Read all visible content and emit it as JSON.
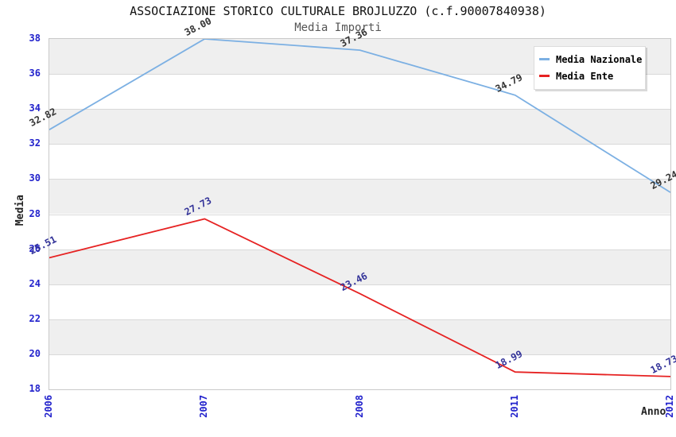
{
  "chart_data": {
    "type": "line",
    "title": "ASSOCIAZIONE STORICO CULTURALE BROJLUZZO (c.f.90007840938)",
    "subtitle": "Media Importi",
    "xlabel": "Anno",
    "ylabel": "Media",
    "categories": [
      "2006",
      "2007",
      "2008",
      "2011",
      "2012"
    ],
    "series": [
      {
        "name": "Media Nazionale",
        "color": "#7CB0E3",
        "label_color": "#333333",
        "values": [
          32.82,
          38.0,
          37.36,
          34.79,
          29.24
        ]
      },
      {
        "name": "Media Ente",
        "color": "#E62222",
        "label_color": "#333399",
        "values": [
          25.51,
          27.73,
          23.46,
          18.99,
          18.73
        ]
      }
    ],
    "ylim": [
      18,
      38
    ],
    "y_tick_step": 2,
    "value_label_decimals": 2,
    "grid": true,
    "legend_position": "top-right",
    "band_colors": [
      "#EFEFEF",
      "#FFFFFF"
    ],
    "tick_label_color": "#2222CC",
    "grid_color": "#D9D9D9",
    "plot_border_color": "#C9C9C9"
  }
}
